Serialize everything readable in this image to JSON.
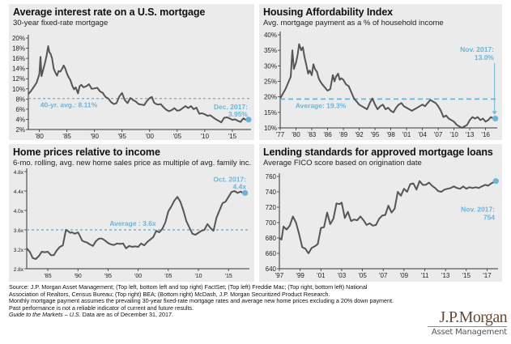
{
  "accent_color": "#6bb5d9",
  "line_color": "#555555",
  "chart_data": [
    {
      "id": "mortgage-rate",
      "type": "line",
      "title": "Average interest rate on a U.S. mortgage",
      "subtitle": "30-year fixed-rate mortgage",
      "xlabel": "",
      "ylabel": "",
      "ylim": [
        2,
        20
      ],
      "xlim": [
        1978.0,
        2018.1
      ],
      "yticks": [
        2,
        4,
        6,
        8,
        10,
        12,
        14,
        16,
        18,
        20
      ],
      "ytick_labels": [
        "2%",
        "4%",
        "6%",
        "8%",
        "10%",
        "12%",
        "14%",
        "16%",
        "18%",
        "20%"
      ],
      "xticks": [
        1980,
        1985,
        1990,
        1995,
        2000,
        2005,
        2010,
        2015
      ],
      "xtick_labels": [
        "'80",
        "'85",
        "'90",
        "'95",
        "'00",
        "'05",
        "'10",
        "'15"
      ],
      "average": {
        "value": 8.11,
        "label": "40-yr. avg.: 8.11%"
      },
      "endpoint": {
        "x": 2017.95,
        "y": 3.95,
        "label_line1": "Dec. 2017:",
        "label_line2": "3.95%"
      },
      "series": [
        {
          "name": "30-year fixed rate",
          "x": [
            1978.0,
            1978.5,
            1979.0,
            1979.5,
            1980.0,
            1980.2,
            1980.4,
            1980.7,
            1981.0,
            1981.3,
            1981.6,
            1981.8,
            1982.0,
            1982.3,
            1982.6,
            1982.9,
            1983.2,
            1983.5,
            1983.8,
            1984.1,
            1984.4,
            1984.7,
            1985.0,
            1985.3,
            1985.6,
            1986.0,
            1986.3,
            1986.6,
            1987.0,
            1987.3,
            1987.6,
            1988.0,
            1988.5,
            1989.0,
            1989.5,
            1990.0,
            1990.5,
            1991.0,
            1991.5,
            1992.0,
            1992.5,
            1993.0,
            1993.5,
            1994.0,
            1994.5,
            1995.0,
            1995.5,
            1996.0,
            1996.5,
            1997.0,
            1997.5,
            1998.0,
            1998.5,
            1999.0,
            1999.5,
            2000.0,
            2000.4,
            2000.8,
            2001.2,
            2001.6,
            2002.0,
            2002.5,
            2003.0,
            2003.5,
            2004.0,
            2004.5,
            2005.0,
            2005.5,
            2006.0,
            2006.5,
            2007.0,
            2007.5,
            2008.0,
            2008.5,
            2009.0,
            2009.5,
            2010.0,
            2010.5,
            2011.0,
            2011.5,
            2012.0,
            2012.5,
            2013.0,
            2013.5,
            2014.0,
            2014.5,
            2015.0,
            2015.5,
            2016.0,
            2016.5,
            2017.0,
            2017.5,
            2017.95
          ],
          "y": [
            9.0,
            9.6,
            10.4,
            11.2,
            12.9,
            16.3,
            12.5,
            13.8,
            15.0,
            16.5,
            18.4,
            17.2,
            17.0,
            16.0,
            14.0,
            13.2,
            12.6,
            13.5,
            13.4,
            13.9,
            14.6,
            14.0,
            13.0,
            12.3,
            11.8,
            10.5,
            9.9,
            10.3,
            9.1,
            10.5,
            10.8,
            10.3,
            10.5,
            10.9,
            10.0,
            10.1,
            10.2,
            9.5,
            9.2,
            8.4,
            8.1,
            7.4,
            7.0,
            7.2,
            8.5,
            9.2,
            7.8,
            7.2,
            8.2,
            7.8,
            7.5,
            7.0,
            6.9,
            6.8,
            7.6,
            8.2,
            8.4,
            7.3,
            7.0,
            6.9,
            7.0,
            6.4,
            5.9,
            5.6,
            5.8,
            6.2,
            5.7,
            5.8,
            6.2,
            6.6,
            6.2,
            6.6,
            6.0,
            6.3,
            5.1,
            5.2,
            5.0,
            4.7,
            4.8,
            4.4,
            4.0,
            3.7,
            3.4,
            4.3,
            4.4,
            4.2,
            3.9,
            4.0,
            3.7,
            3.5,
            4.2,
            3.9,
            3.95
          ]
        }
      ]
    },
    {
      "id": "affordability-index",
      "type": "line",
      "title": "Housing Affordability Index",
      "subtitle": "Avg. mortgage payment as a % of household income",
      "xlabel": "",
      "ylabel": "",
      "ylim": [
        10,
        40
      ],
      "xlim": [
        1977.0,
        2017.9
      ],
      "yticks": [
        10,
        15,
        20,
        25,
        30,
        35,
        40
      ],
      "ytick_labels": [
        "10%",
        "15%",
        "20%",
        "25%",
        "30%",
        "35%",
        "40%"
      ],
      "xticks": [
        1977,
        1980,
        1983,
        1986,
        1989,
        1992,
        1995,
        1998,
        2001,
        2004,
        2007,
        2010,
        2013,
        2016
      ],
      "xtick_labels": [
        "'77",
        "'80",
        "'83",
        "'86",
        "'89",
        "'92",
        "'95",
        "'98",
        "'01",
        "'04",
        "'07",
        "'10",
        "'13",
        "'16"
      ],
      "average": {
        "value": 19.3,
        "label": "Average: 19.3%"
      },
      "endpoint": {
        "x": 2017.85,
        "y": 13.0,
        "label_line1": "Nov. 2017:",
        "label_line2": "13.0%"
      },
      "series": [
        {
          "name": "Mortgage payment % of income",
          "x": [
            1977.0,
            1977.5,
            1978.0,
            1978.5,
            1979.0,
            1979.3,
            1979.6,
            1980.0,
            1980.3,
            1980.6,
            1981.0,
            1981.3,
            1981.6,
            1982.0,
            1982.3,
            1982.6,
            1983.0,
            1983.3,
            1983.6,
            1984.0,
            1984.3,
            1984.6,
            1985.0,
            1985.5,
            1986.0,
            1986.5,
            1987.0,
            1987.3,
            1987.6,
            1988.0,
            1988.3,
            1988.6,
            1989.0,
            1989.5,
            1990.0,
            1990.5,
            1991.0,
            1991.5,
            1992.0,
            1992.5,
            1993.0,
            1993.5,
            1994.0,
            1994.5,
            1995.0,
            1995.5,
            1996.0,
            1996.5,
            1997.0,
            1997.5,
            1998.0,
            1998.5,
            1999.0,
            1999.5,
            2000.0,
            2000.5,
            2001.0,
            2001.5,
            2002.0,
            2002.5,
            2003.0,
            2003.5,
            2004.0,
            2004.5,
            2005.0,
            2005.5,
            2006.0,
            2006.5,
            2007.0,
            2007.5,
            2008.0,
            2008.5,
            2009.0,
            2009.5,
            2010.0,
            2010.5,
            2011.0,
            2011.5,
            2012.0,
            2012.5,
            2013.0,
            2013.5,
            2014.0,
            2014.5,
            2015.0,
            2015.5,
            2016.0,
            2016.5,
            2017.0,
            2017.5,
            2017.85
          ],
          "y": [
            19.5,
            21.0,
            22.5,
            24.5,
            26.5,
            35.0,
            29.0,
            31.0,
            33.5,
            37.0,
            35.0,
            36.0,
            33.0,
            30.0,
            27.5,
            28.5,
            27.0,
            30.5,
            29.0,
            28.0,
            26.0,
            25.0,
            24.0,
            23.0,
            22.0,
            22.5,
            27.0,
            25.0,
            26.5,
            27.5,
            25.5,
            26.0,
            25.5,
            24.0,
            23.5,
            21.5,
            19.5,
            18.5,
            17.5,
            17.0,
            16.5,
            16.0,
            18.0,
            19.5,
            17.5,
            16.0,
            17.0,
            17.5,
            16.0,
            16.5,
            15.5,
            15.0,
            16.5,
            17.5,
            18.0,
            17.0,
            16.5,
            16.0,
            15.5,
            16.0,
            16.5,
            17.0,
            17.5,
            17.0,
            18.0,
            19.0,
            18.5,
            18.0,
            17.0,
            15.5,
            13.5,
            14.0,
            13.0,
            12.5,
            12.0,
            11.0,
            10.5,
            10.0,
            10.5,
            11.0,
            12.5,
            13.5,
            13.0,
            13.5,
            12.5,
            13.0,
            12.0,
            12.5,
            13.5,
            13.0,
            13.0
          ]
        }
      ]
    },
    {
      "id": "price-to-income",
      "type": "line",
      "title": "Home prices relative to income",
      "subtitle": "6-mo. rolling, avg. new home sales price as multiple of avg. family inc.",
      "xlabel": "",
      "ylabel": "",
      "ylim": [
        2.8,
        4.8
      ],
      "xlim": [
        1981.5,
        2018.2
      ],
      "yticks": [
        2.8,
        3.2,
        3.6,
        4.0,
        4.4,
        4.8
      ],
      "ytick_labels": [
        "2.8x",
        "3.2x",
        "3.6x",
        "4.0x",
        "4.4x",
        "4.8x"
      ],
      "xticks": [
        1985,
        1990,
        1995,
        2000,
        2005,
        2010,
        2015
      ],
      "xtick_labels": [
        "'85",
        "'90",
        "'95",
        "'00",
        "'05",
        "'10",
        "'15"
      ],
      "average": {
        "value": 3.6,
        "label": "Average : 3.6x"
      },
      "endpoint": {
        "x": 2017.75,
        "y": 4.36,
        "label_line1": "Oct. 2017:",
        "label_line2": "4.4x"
      },
      "series": [
        {
          "name": "Price-to-income multiple",
          "x": [
            1981.5,
            1982.0,
            1982.5,
            1983.0,
            1983.5,
            1984.0,
            1984.5,
            1985.0,
            1985.5,
            1986.0,
            1986.5,
            1987.0,
            1987.5,
            1988.0,
            1988.3,
            1988.7,
            1989.0,
            1989.5,
            1990.0,
            1990.3,
            1990.7,
            1991.0,
            1991.5,
            1992.0,
            1992.5,
            1993.0,
            1993.5,
            1994.0,
            1994.5,
            1995.0,
            1995.5,
            1996.0,
            1996.5,
            1997.0,
            1997.5,
            1998.0,
            1998.5,
            1999.0,
            1999.5,
            2000.0,
            2000.5,
            2001.0,
            2001.5,
            2002.0,
            2002.5,
            2003.0,
            2003.5,
            2004.0,
            2004.5,
            2005.0,
            2005.5,
            2006.0,
            2006.5,
            2007.0,
            2007.5,
            2008.0,
            2008.5,
            2009.0,
            2009.5,
            2010.0,
            2010.5,
            2011.0,
            2011.5,
            2012.0,
            2012.5,
            2013.0,
            2013.5,
            2014.0,
            2014.5,
            2015.0,
            2015.5,
            2016.0,
            2016.5,
            2017.0,
            2017.5,
            2017.75
          ],
          "y": [
            3.22,
            3.15,
            3.02,
            3.0,
            3.06,
            3.15,
            3.14,
            3.15,
            3.08,
            3.08,
            3.18,
            3.25,
            3.28,
            3.6,
            3.58,
            3.54,
            3.55,
            3.52,
            3.55,
            3.48,
            3.38,
            3.36,
            3.34,
            3.3,
            3.27,
            3.37,
            3.42,
            3.42,
            3.38,
            3.33,
            3.3,
            3.29,
            3.32,
            3.31,
            3.32,
            3.22,
            3.27,
            3.25,
            3.26,
            3.25,
            3.32,
            3.28,
            3.35,
            3.4,
            3.45,
            3.58,
            3.55,
            3.62,
            3.75,
            3.98,
            4.08,
            4.2,
            4.28,
            4.18,
            4.0,
            3.78,
            3.65,
            3.52,
            3.5,
            3.54,
            3.58,
            3.6,
            3.72,
            3.64,
            3.58,
            3.85,
            4.0,
            4.15,
            4.18,
            4.28,
            4.38,
            4.4,
            4.36,
            4.39,
            4.35,
            4.36
          ]
        }
      ]
    },
    {
      "id": "fico-score",
      "type": "line",
      "title": "Lending standards for approved mortgage loans",
      "subtitle": "Average FICO score based on origination date",
      "xlabel": "",
      "ylabel": "",
      "ylim": [
        640,
        760
      ],
      "xlim": [
        1997.0,
        2017.9
      ],
      "yticks": [
        640,
        660,
        680,
        700,
        720,
        740,
        760
      ],
      "ytick_labels": [
        "640",
        "660",
        "680",
        "700",
        "720",
        "740",
        "760"
      ],
      "xticks": [
        1997,
        1999,
        2001,
        2003,
        2005,
        2007,
        2009,
        2011,
        2013,
        2015,
        2017
      ],
      "xtick_labels": [
        "'97",
        "'99",
        "'01",
        "'03",
        "'05",
        "'07",
        "'09",
        "'11",
        "'13",
        "'15",
        "'17"
      ],
      "average": null,
      "endpoint": {
        "x": 2017.85,
        "y": 754,
        "label_line1": "Nov. 2017:",
        "label_line2": "754"
      },
      "series": [
        {
          "name": "Average FICO score",
          "x": [
            1997.0,
            1997.2,
            1997.4,
            1997.7,
            1998.0,
            1998.3,
            1998.6,
            1998.9,
            1999.2,
            1999.5,
            1999.8,
            2000.1,
            2000.4,
            2000.7,
            2001.0,
            2001.3,
            2001.6,
            2001.9,
            2002.2,
            2002.5,
            2002.8,
            2003.0,
            2003.3,
            2003.6,
            2003.9,
            2004.2,
            2004.5,
            2004.8,
            2005.1,
            2005.4,
            2005.7,
            2006.0,
            2006.3,
            2006.6,
            2006.9,
            2007.2,
            2007.5,
            2007.8,
            2008.1,
            2008.4,
            2008.7,
            2009.0,
            2009.3,
            2009.6,
            2009.9,
            2010.2,
            2010.5,
            2010.8,
            2011.1,
            2011.4,
            2011.7,
            2012.0,
            2012.3,
            2012.6,
            2012.9,
            2013.2,
            2013.5,
            2013.8,
            2014.1,
            2014.4,
            2014.7,
            2015.0,
            2015.3,
            2015.6,
            2015.9,
            2016.2,
            2016.5,
            2016.8,
            2017.1,
            2017.4,
            2017.85
          ],
          "y": [
            680,
            678,
            695,
            691,
            696,
            708,
            700,
            685,
            668,
            666,
            660,
            667,
            669,
            672,
            693,
            694,
            713,
            698,
            705,
            725,
            724,
            726,
            706,
            714,
            702,
            704,
            703,
            708,
            703,
            697,
            699,
            696,
            697,
            705,
            709,
            710,
            722,
            713,
            718,
            740,
            735,
            744,
            740,
            750,
            751,
            743,
            754,
            749,
            749,
            752,
            748,
            745,
            741,
            740,
            743,
            744,
            745,
            747,
            745,
            744,
            747,
            744,
            746,
            745,
            746,
            745,
            747,
            749,
            748,
            751,
            754
          ]
        }
      ]
    }
  ],
  "footnote": {
    "lines": [
      "Source: J.P. Morgan Asset Management; (Top left, bottom left and top right) FactSet; (Top left) Freddie Mac; (Top right, bottom left) National",
      "Association of Realtors, Census Bureau;  (Top right) BEA; (Bottom right) McDash, J.P. Morgan Securitized Product Research.",
      "Monthly mortgage payment assumes the prevailing 30-year fixed-rate mortgage rates and average new home prices excluding a 20% down payment.",
      "Past performance is not a reliable indicator of current and future results."
    ],
    "guide_italic": "Guide to the Markets – U.S.",
    "guide_rest": " Data are as of December 31, 2017."
  },
  "logo": {
    "brand": "J.P.Morgan",
    "division": "Asset Management"
  }
}
